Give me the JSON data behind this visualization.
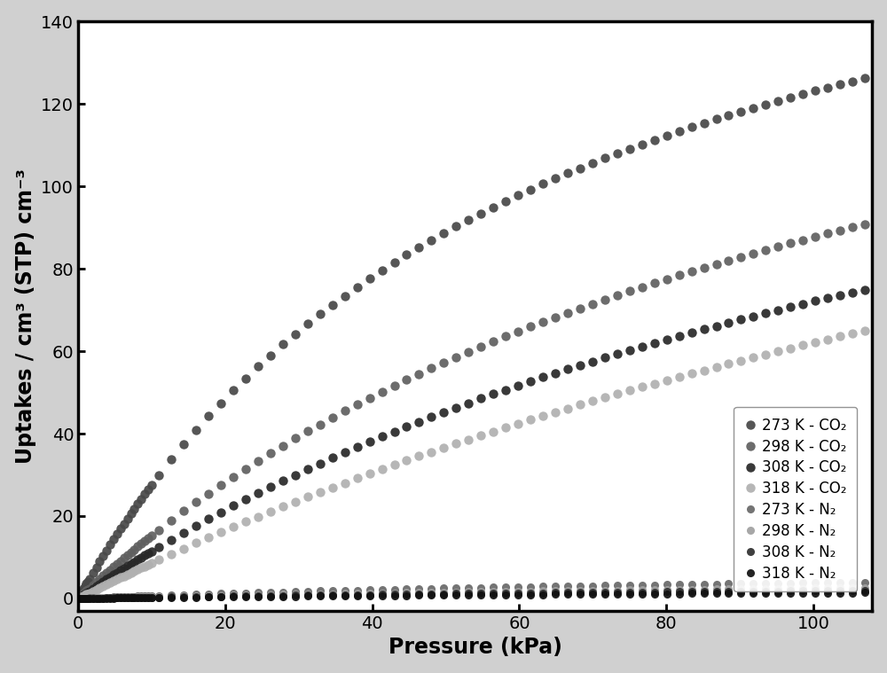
{
  "xlabel": "Pressure (kPa)",
  "ylabel": "Uptakes / cm³ (STP) cm⁻³",
  "xlim": [
    0,
    108
  ],
  "ylim": [
    -3,
    140
  ],
  "yticks": [
    0,
    20,
    40,
    60,
    80,
    100,
    120,
    140
  ],
  "xticks": [
    0,
    20,
    40,
    60,
    80,
    100
  ],
  "background_color": "#d0d0d0",
  "plot_bg_color": "#ffffff",
  "series_co2": [
    {
      "label": "273 K - CO₂",
      "color": "#484848",
      "q_max": 200,
      "b": 0.016,
      "marker_size": 7.5
    },
    {
      "label": "298 K - CO₂",
      "color": "#606060",
      "q_max": 185,
      "b": 0.009,
      "marker_size": 7.5
    },
    {
      "label": "308 K - CO₂",
      "color": "#282828",
      "q_max": 175,
      "b": 0.007,
      "marker_size": 7.5
    },
    {
      "label": "318 K - CO₂",
      "color": "#b0b0b0",
      "q_max": 200,
      "b": 0.0045,
      "marker_size": 7.5
    }
  ],
  "series_n2": [
    {
      "label": "273 K - N₂",
      "color": "#686868",
      "q_max": 8,
      "b": 0.009,
      "marker_size": 6.5
    },
    {
      "label": "298 K - N₂",
      "color": "#a0a0a0",
      "q_max": 6,
      "b": 0.007,
      "marker_size": 6.5
    },
    {
      "label": "308 K - N₂",
      "color": "#303030",
      "q_max": 5,
      "b": 0.006,
      "marker_size": 6.5
    },
    {
      "label": "318 K - N₂",
      "color": "#101010",
      "q_max": 4,
      "b": 0.005,
      "marker_size": 6.5
    }
  ],
  "legend_fontsize": 12,
  "axis_label_fontsize": 17,
  "tick_fontsize": 14,
  "figsize": [
    10.0,
    7.59
  ],
  "dpi": 100
}
